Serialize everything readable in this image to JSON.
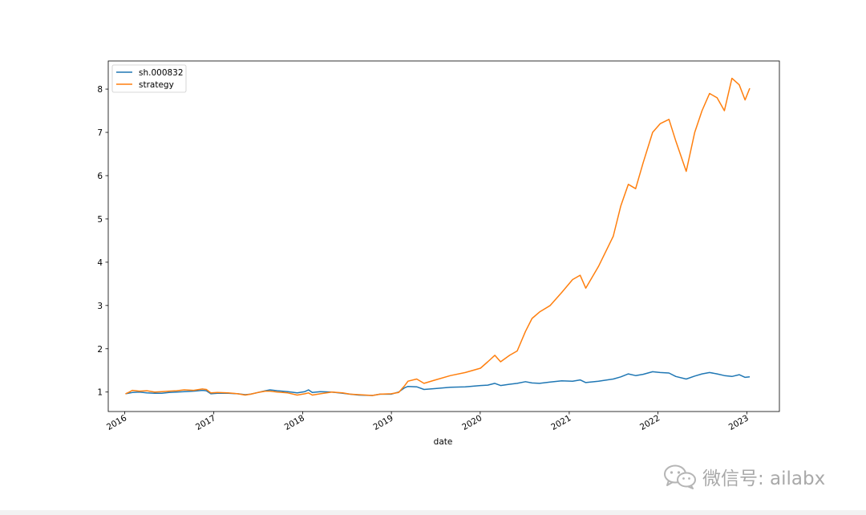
{
  "chart_data": {
    "type": "line",
    "xlabel": "date",
    "ylabel": "",
    "title": "",
    "x_ticks": [
      "2016",
      "2017",
      "2018",
      "2019",
      "2020",
      "2021",
      "2022",
      "2023"
    ],
    "y_ticks": [
      1,
      2,
      3,
      4,
      5,
      6,
      7,
      8
    ],
    "xlim": [
      "2015-10-25",
      "2023-05-15"
    ],
    "ylim": [
      0.55,
      8.65
    ],
    "grid": false,
    "legend_position": "upper-left",
    "series": [
      {
        "name": "sh.000832",
        "color": "#1f77b4",
        "points": [
          [
            "2016-01-04",
            0.96
          ],
          [
            "2016-02-01",
            0.99
          ],
          [
            "2016-03-01",
            1.0
          ],
          [
            "2016-04-01",
            0.98
          ],
          [
            "2016-05-03",
            0.97
          ],
          [
            "2016-06-01",
            0.97
          ],
          [
            "2016-07-01",
            0.99
          ],
          [
            "2016-08-01",
            1.0
          ],
          [
            "2016-09-01",
            1.01
          ],
          [
            "2016-10-10",
            1.02
          ],
          [
            "2016-11-15",
            1.04
          ],
          [
            "2016-12-01",
            1.03
          ],
          [
            "2016-12-20",
            0.96
          ],
          [
            "2017-01-16",
            0.97
          ],
          [
            "2017-03-01",
            0.97
          ],
          [
            "2017-04-10",
            0.96
          ],
          [
            "2017-05-10",
            0.94
          ],
          [
            "2017-06-01",
            0.95
          ],
          [
            "2017-07-01",
            0.99
          ],
          [
            "2017-08-01",
            1.03
          ],
          [
            "2017-08-20",
            1.05
          ],
          [
            "2017-09-20",
            1.03
          ],
          [
            "2017-11-01",
            1.01
          ],
          [
            "2017-12-10",
            0.98
          ],
          [
            "2018-01-10",
            1.01
          ],
          [
            "2018-01-25",
            1.05
          ],
          [
            "2018-02-10",
            0.99
          ],
          [
            "2018-03-15",
            1.01
          ],
          [
            "2018-05-01",
            1.0
          ],
          [
            "2018-06-15",
            0.97
          ],
          [
            "2018-07-15",
            0.95
          ],
          [
            "2018-08-20",
            0.93
          ],
          [
            "2018-10-15",
            0.92
          ],
          [
            "2018-11-15",
            0.95
          ],
          [
            "2018-12-31",
            0.95
          ],
          [
            "2019-01-31",
            1.0
          ],
          [
            "2019-02-25",
            1.1
          ],
          [
            "2019-03-10",
            1.13
          ],
          [
            "2019-04-15",
            1.12
          ],
          [
            "2019-05-15",
            1.06
          ],
          [
            "2019-07-01",
            1.08
          ],
          [
            "2019-09-01",
            1.11
          ],
          [
            "2019-11-01",
            1.12
          ],
          [
            "2020-01-02",
            1.15
          ],
          [
            "2020-02-01",
            1.16
          ],
          [
            "2020-03-01",
            1.2
          ],
          [
            "2020-03-25",
            1.15
          ],
          [
            "2020-05-01",
            1.18
          ],
          [
            "2020-06-01",
            1.2
          ],
          [
            "2020-07-05",
            1.24
          ],
          [
            "2020-08-01",
            1.21
          ],
          [
            "2020-09-01",
            1.2
          ],
          [
            "2020-10-15",
            1.23
          ],
          [
            "2020-12-01",
            1.26
          ],
          [
            "2021-01-15",
            1.25
          ],
          [
            "2021-02-15",
            1.28
          ],
          [
            "2021-03-10",
            1.22
          ],
          [
            "2021-05-01",
            1.25
          ],
          [
            "2021-07-01",
            1.3
          ],
          [
            "2021-08-01",
            1.35
          ],
          [
            "2021-09-01",
            1.42
          ],
          [
            "2021-10-01",
            1.38
          ],
          [
            "2021-11-01",
            1.41
          ],
          [
            "2021-12-10",
            1.47
          ],
          [
            "2022-01-10",
            1.45
          ],
          [
            "2022-02-15",
            1.44
          ],
          [
            "2022-03-15",
            1.36
          ],
          [
            "2022-04-27",
            1.3
          ],
          [
            "2022-06-01",
            1.37
          ],
          [
            "2022-07-01",
            1.42
          ],
          [
            "2022-08-01",
            1.45
          ],
          [
            "2022-09-01",
            1.42
          ],
          [
            "2022-10-01",
            1.38
          ],
          [
            "2022-11-01",
            1.36
          ],
          [
            "2022-12-01",
            1.4
          ],
          [
            "2022-12-25",
            1.34
          ],
          [
            "2023-01-13",
            1.35
          ]
        ]
      },
      {
        "name": "strategy",
        "color": "#ff7f0e",
        "points": [
          [
            "2016-01-04",
            0.96
          ],
          [
            "2016-01-20",
            1.0
          ],
          [
            "2016-02-01",
            1.04
          ],
          [
            "2016-03-01",
            1.02
          ],
          [
            "2016-04-01",
            1.03
          ],
          [
            "2016-05-03",
            1.0
          ],
          [
            "2016-06-01",
            1.01
          ],
          [
            "2016-07-01",
            1.02
          ],
          [
            "2016-08-01",
            1.03
          ],
          [
            "2016-09-01",
            1.05
          ],
          [
            "2016-10-10",
            1.04
          ],
          [
            "2016-11-15",
            1.07
          ],
          [
            "2016-12-01",
            1.06
          ],
          [
            "2016-12-20",
            0.98
          ],
          [
            "2017-01-16",
            0.99
          ],
          [
            "2017-03-01",
            0.98
          ],
          [
            "2017-04-10",
            0.96
          ],
          [
            "2017-05-10",
            0.93
          ],
          [
            "2017-06-01",
            0.95
          ],
          [
            "2017-07-01",
            0.99
          ],
          [
            "2017-08-01",
            1.02
          ],
          [
            "2017-08-20",
            1.02
          ],
          [
            "2017-09-20",
            1.0
          ],
          [
            "2017-11-01",
            0.98
          ],
          [
            "2017-12-10",
            0.93
          ],
          [
            "2018-01-10",
            0.96
          ],
          [
            "2018-01-25",
            0.98
          ],
          [
            "2018-02-10",
            0.93
          ],
          [
            "2018-03-15",
            0.96
          ],
          [
            "2018-05-01",
            1.0
          ],
          [
            "2018-06-15",
            0.98
          ],
          [
            "2018-07-15",
            0.95
          ],
          [
            "2018-08-20",
            0.94
          ],
          [
            "2018-10-15",
            0.92
          ],
          [
            "2018-11-15",
            0.95
          ],
          [
            "2018-12-31",
            0.96
          ],
          [
            "2019-01-31",
            0.99
          ],
          [
            "2019-02-25",
            1.15
          ],
          [
            "2019-03-10",
            1.25
          ],
          [
            "2019-04-15",
            1.3
          ],
          [
            "2019-05-15",
            1.2
          ],
          [
            "2019-07-01",
            1.28
          ],
          [
            "2019-09-01",
            1.38
          ],
          [
            "2019-11-01",
            1.45
          ],
          [
            "2020-01-02",
            1.55
          ],
          [
            "2020-02-01",
            1.7
          ],
          [
            "2020-03-01",
            1.85
          ],
          [
            "2020-03-25",
            1.7
          ],
          [
            "2020-05-01",
            1.85
          ],
          [
            "2020-06-01",
            1.95
          ],
          [
            "2020-07-05",
            2.4
          ],
          [
            "2020-08-01",
            2.7
          ],
          [
            "2020-09-01",
            2.85
          ],
          [
            "2020-10-15",
            3.0
          ],
          [
            "2020-12-01",
            3.3
          ],
          [
            "2021-01-15",
            3.6
          ],
          [
            "2021-02-15",
            3.7
          ],
          [
            "2021-03-10",
            3.4
          ],
          [
            "2021-05-01",
            3.9
          ],
          [
            "2021-07-01",
            4.6
          ],
          [
            "2021-08-01",
            5.3
          ],
          [
            "2021-09-01",
            5.8
          ],
          [
            "2021-10-01",
            5.7
          ],
          [
            "2021-11-01",
            6.3
          ],
          [
            "2021-12-10",
            7.0
          ],
          [
            "2022-01-10",
            7.2
          ],
          [
            "2022-02-15",
            7.3
          ],
          [
            "2022-03-15",
            6.8
          ],
          [
            "2022-04-27",
            6.1
          ],
          [
            "2022-06-01",
            7.0
          ],
          [
            "2022-07-01",
            7.5
          ],
          [
            "2022-08-01",
            7.9
          ],
          [
            "2022-09-01",
            7.8
          ],
          [
            "2022-10-01",
            7.5
          ],
          [
            "2022-11-01",
            8.25
          ],
          [
            "2022-12-01",
            8.1
          ],
          [
            "2022-12-25",
            7.75
          ],
          [
            "2023-01-13",
            8.02
          ]
        ]
      }
    ]
  },
  "watermark": {
    "text": "微信号: ailabx",
    "icon": "wechat-icon"
  }
}
